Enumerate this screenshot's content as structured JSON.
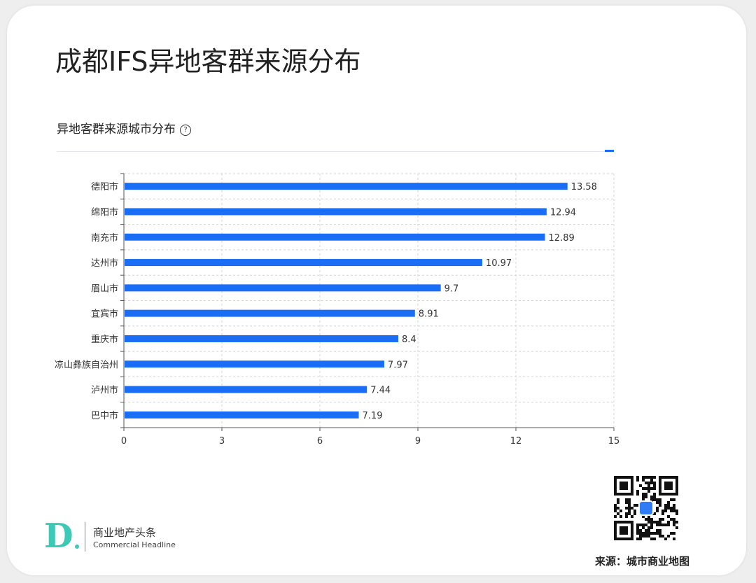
{
  "page": {
    "title": "成都IFS异地客群来源分布",
    "accent_color": "#1a6ef5"
  },
  "panel": {
    "title": "异地客群来源城市分布",
    "help_icon": "question-circle-icon"
  },
  "chart_data": {
    "type": "bar",
    "orientation": "horizontal",
    "title": "异地客群来源城市分布",
    "categories": [
      "德阳市",
      "绵阳市",
      "南充市",
      "达州市",
      "眉山市",
      "宜宾市",
      "重庆市",
      "凉山彝族自治州",
      "泸州市",
      "巴中市"
    ],
    "values": [
      13.58,
      12.94,
      12.89,
      10.97,
      9.7,
      8.91,
      8.4,
      7.97,
      7.44,
      7.19
    ],
    "value_labels": [
      "13.58",
      "12.94",
      "12.89",
      "10.97",
      "9.7",
      "8.91",
      "8.4",
      "7.97",
      "7.44",
      "7.19"
    ],
    "xlim": [
      0,
      15
    ],
    "xticks": [
      0,
      3,
      6,
      9,
      12,
      15
    ],
    "grid": true,
    "bar_color": "#1a6ef5"
  },
  "footer": {
    "logo_mark": "D",
    "logo_cn": "商业地产头条",
    "logo_en": "Commercial Headline",
    "source": "来源：城市商业地图"
  }
}
